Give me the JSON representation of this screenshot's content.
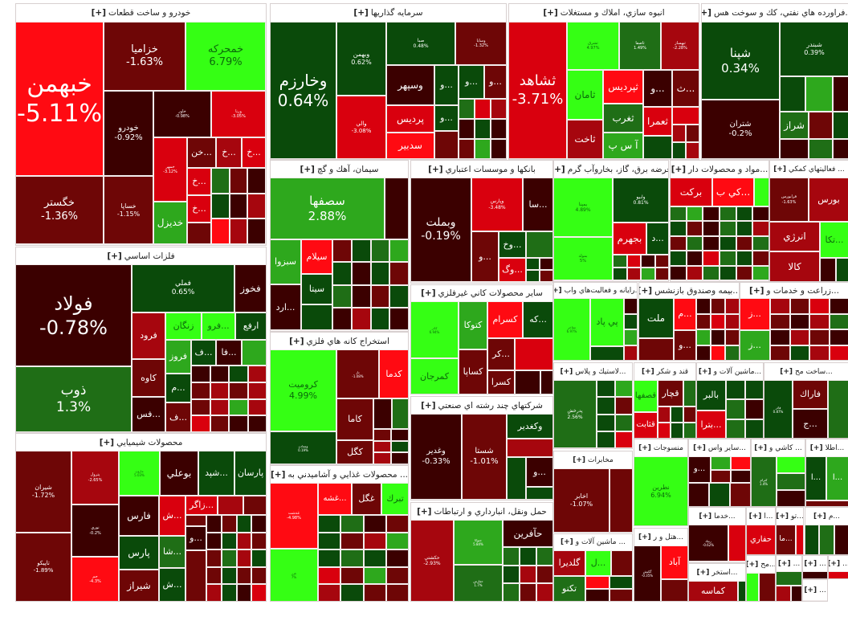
{
  "expand_label": "[+]",
  "sectors": [
    {
      "title": "خودرو و ساخت قطعات",
      "tiles": [
        {
          "label": "خبهمن",
          "pct": "-5.11%"
        },
        {
          "label": "خگستر",
          "pct": "-1.36%"
        },
        {
          "label": "خزاميا",
          "pct": "-1.63%"
        },
        {
          "label": "خمحركه",
          "pct": "6.79%"
        },
        {
          "label": "خودرو",
          "pct": "-0.92%"
        },
        {
          "label": "خاور",
          "pct": "-0.98%"
        },
        {
          "label": "ورنا",
          "pct": "-3.05%"
        },
        {
          "label": "خساپا",
          "pct": "-1.15%"
        },
        {
          "label": "خمهر",
          "pct": "-3.12%"
        },
        {
          "label": "خديزل"
        },
        {
          "label": "...خن"
        },
        {
          "label": "...خ"
        },
        {
          "label": "...خ"
        },
        {
          "label": "...خ"
        },
        {
          "label": "...خ"
        }
      ]
    },
    {
      "title": "سرمايه گذاريها",
      "tiles": [
        {
          "label": "وخارزم",
          "pct": "0.64%"
        },
        {
          "label": "وبهمن",
          "pct": "0.62%"
        },
        {
          "label": "والي",
          "pct": "-3.08%"
        },
        {
          "label": "صبا",
          "pct": "0.48%"
        },
        {
          "label": "وسايا",
          "pct": "-1.32%"
        },
        {
          "label": "وسپهر"
        },
        {
          "label": "پرديس"
        },
        {
          "label": "سدبير"
        },
        {
          "label": "...و"
        },
        {
          "label": "...و"
        },
        {
          "label": "...و"
        },
        {
          "label": "...و"
        }
      ]
    },
    {
      "title": "انبوه سازي، املاك و مستغلات",
      "tiles": [
        {
          "label": "ثشاهد",
          "pct": "-3.71%"
        },
        {
          "label": "ثشرق",
          "pct": "4.97%"
        },
        {
          "label": "ثاصفا",
          "pct": "1.49%"
        },
        {
          "label": "ثبهساز",
          "pct": "-2.28%"
        },
        {
          "label": "ثامان"
        },
        {
          "label": "ثپرديس"
        },
        {
          "label": "...و"
        },
        {
          "label": "...ث"
        },
        {
          "label": "ثغرب"
        },
        {
          "label": "ثعمرا"
        },
        {
          "label": "ثاخت"
        },
        {
          "label": "آ س پ"
        }
      ]
    },
    {
      "title": "...فراورده هاي نفتي، كك و سوخت هس",
      "tiles": [
        {
          "label": "شپنا",
          "pct": "0.34%"
        },
        {
          "label": "شبندر",
          "pct": "0.39%"
        },
        {
          "label": "شتران",
          "pct": "-0.2%"
        },
        {
          "label": "شراز"
        }
      ]
    },
    {
      "title": "سيمان، آهك و گچ",
      "tiles": [
        {
          "label": "سصفها",
          "pct": "2.88%"
        },
        {
          "label": "سبزوا"
        },
        {
          "label": "سيلام"
        },
        {
          "label": "سيتا"
        },
        {
          "label": "...ارد"
        }
      ]
    },
    {
      "title": "بانكها و موسسات اعتباري",
      "tiles": [
        {
          "label": "وبملت",
          "pct": "-0.19%"
        },
        {
          "label": "وپارس",
          "pct": "-3.48%"
        },
        {
          "label": "...سا"
        },
        {
          "label": "...و"
        },
        {
          "label": "...وخ"
        },
        {
          "label": "...وگ"
        }
      ]
    },
    {
      "title": "عرضه برق، گاز، بخاروآب گرم",
      "tiles": [
        {
          "label": "بمپنا",
          "pct": "4.89%"
        },
        {
          "label": "بمولد",
          "pct": "5%"
        },
        {
          "label": "وابيو",
          "pct": "0.81%"
        },
        {
          "label": "بجهرم"
        },
        {
          "label": "...د"
        }
      ]
    },
    {
      "title": "...مواد و محصولات دار",
      "tiles": [
        {
          "label": "بركت"
        },
        {
          "label": "...كي ب"
        }
      ]
    },
    {
      "title": "... فعاليتهاي كمكي",
      "tiles": [
        {
          "label": "فرابورس",
          "pct": "-1.63%"
        },
        {
          "label": "بورس"
        },
        {
          "label": "انرژي"
        },
        {
          "label": "...تكا"
        },
        {
          "label": "كالا"
        }
      ]
    },
    {
      "title": "فلزات اساسي",
      "tiles": [
        {
          "label": "فولاد",
          "pct": "-0.78%"
        },
        {
          "label": "ذوب",
          "pct": "1.3%"
        },
        {
          "label": "فملي",
          "pct": "0.65%"
        },
        {
          "label": "فخوز"
        },
        {
          "label": "فرود"
        },
        {
          "label": "زنگان"
        },
        {
          "label": "...فرو"
        },
        {
          "label": "ارفع"
        },
        {
          "label": "كاوه"
        },
        {
          "label": "...فس"
        },
        {
          "label": "فروز"
        },
        {
          "label": "...ف"
        },
        {
          "label": "...فا"
        },
        {
          "label": "...م"
        },
        {
          "label": "...ف"
        }
      ]
    },
    {
      "title": "محصولات شيميايي",
      "tiles": [
        {
          "label": "شيران",
          "pct": "-1.72%"
        },
        {
          "label": "تاپيكو",
          "pct": "-1.89%"
        },
        {
          "label": "پترول",
          "pct": "-2.65%"
        },
        {
          "label": "نوري",
          "pct": "-0.2%"
        },
        {
          "label": "جم",
          "pct": "-4.3%"
        },
        {
          "label": "مارون",
          "pct": "5.03%"
        },
        {
          "label": "بوعلي"
        },
        {
          "label": "...شپد"
        },
        {
          "label": "پارسان"
        },
        {
          "label": "فارس"
        },
        {
          "label": "پارس"
        },
        {
          "label": "شيراز"
        },
        {
          "label": "...ش"
        },
        {
          "label": "...زاگر"
        },
        {
          "label": "...شا"
        },
        {
          "label": "...ش"
        },
        {
          "label": "...و"
        }
      ]
    },
    {
      "title": "استخراج كانه هاي فلزي",
      "tiles": [
        {
          "label": "كروميت",
          "pct": "4.99%"
        },
        {
          "label": "ومعادن",
          "pct": "0.19%"
        },
        {
          "label": "تاز",
          "pct": "-1.08%"
        },
        {
          "label": "كدما"
        },
        {
          "label": "كاما"
        },
        {
          "label": "كگل"
        }
      ]
    },
    {
      "title": "... محصولات غذايي و آشاميدني به",
      "tiles": [
        {
          "label": "غدشت",
          "pct": "-4.98%"
        },
        {
          "label": "غزر",
          "pct": "7%"
        },
        {
          "label": "...غشه"
        },
        {
          "label": "غگل"
        },
        {
          "label": "تبرك"
        }
      ]
    },
    {
      "title": "ساير محصولات كاني غيرفلزي",
      "tiles": [
        {
          "label": "كاذر",
          "pct": "6.94%"
        },
        {
          "label": "كمرجان"
        },
        {
          "label": "كتوكا"
        },
        {
          "label": "كسرام"
        },
        {
          "label": "...كه"
        },
        {
          "label": "كساپا"
        },
        {
          "label": "...كر"
        },
        {
          "label": "كسرا"
        }
      ]
    },
    {
      "title": "شركتهاي چند رشته اي صنعتي",
      "tiles": [
        {
          "label": "وغدير",
          "pct": "-0.33%"
        },
        {
          "label": "شستا",
          "pct": "-1.01%"
        },
        {
          "label": "وكغدير"
        },
        {
          "label": "...و"
        }
      ]
    },
    {
      "title": "حمل ونقل، انبارداري و ارتباطات",
      "tiles": [
        {
          "label": "حكشتي",
          "pct": "-2.93%"
        },
        {
          "label": "حتوكا",
          "pct": "5.84%"
        },
        {
          "label": "حفارس",
          "pct": "1.7%"
        },
        {
          "label": "حآفرين"
        }
      ]
    },
    {
      "title": "...رايانه و فعاليت‌هاي واب",
      "tiles": [
        {
          "label": "مفاخر",
          "pct": "6.97%"
        },
        {
          "label": "پي پاد"
        }
      ]
    },
    {
      "title": "...بيمه وصندوق بازنشس",
      "tiles": [
        {
          "label": "ملت"
        },
        {
          "label": "...م"
        },
        {
          "label": "...و"
        }
      ]
    },
    {
      "title": "...زراعت و خدمات و",
      "tiles": [
        {
          "label": "...ز"
        },
        {
          "label": "...ز"
        }
      ]
    },
    {
      "title": "...لاستيك و پلاس",
      "tiles": [
        {
          "label": "پدرخش",
          "pct": "2.56%"
        }
      ]
    },
    {
      "title": "قند و شكر",
      "tiles": [
        {
          "label": "قصفها"
        },
        {
          "label": "قچار"
        },
        {
          "label": "قثابت"
        }
      ]
    },
    {
      "title": "...ماشين آلات و",
      "tiles": [
        {
          "label": "بالبر"
        },
        {
          "label": "...بترا"
        }
      ]
    },
    {
      "title": "...ساخت مح",
      "tiles": [
        {
          "label": "فاذر",
          "pct": "0.87%"
        },
        {
          "label": "فاراك"
        },
        {
          "label": "...ج"
        }
      ]
    },
    {
      "title": "مخابرات",
      "tiles": [
        {
          "label": "اخابر",
          "pct": "-1.07%"
        }
      ]
    },
    {
      "title": "... ماشين آلات و",
      "tiles": [
        {
          "label": "گلديرا"
        },
        {
          "label": "...ل"
        },
        {
          "label": "تكنو"
        }
      ]
    },
    {
      "title": "منسوجات",
      "tiles": [
        {
          "label": "نطرين",
          "pct": "6.94%"
        }
      ]
    },
    {
      "title": "...ساير واس",
      "tiles": [
        {
          "label": "...و"
        }
      ]
    },
    {
      "title": "... كاشي و",
      "tiles": [
        {
          "label": "كترام",
          "pct": "1.4%"
        }
      ]
    },
    {
      "title": "...اطلا",
      "tiles": [
        {
          "label": "...ا"
        },
        {
          "label": "...ا"
        }
      ]
    },
    {
      "title": "...هتل و ر",
      "tiles": [
        {
          "label": "گكيش",
          "pct": "-0.35%"
        },
        {
          "label": "آباد"
        }
      ]
    },
    {
      "title": "...خدما",
      "tiles": [
        {
          "label": "رنيك",
          "pct": "-0.62%"
        }
      ]
    },
    {
      "title": "...ا",
      "tiles": [
        {
          "label": "حفاري"
        }
      ]
    },
    {
      "title": "...تو",
      "tiles": [
        {
          "label": "...ما"
        }
      ]
    },
    {
      "title": "...م",
      "tiles": []
    },
    {
      "title": "...استخر",
      "tiles": [
        {
          "label": "كماسه"
        }
      ]
    },
    {
      "title": "...مح",
      "tiles": []
    },
    {
      "title": "...",
      "tiles": []
    },
    {
      "title": "...",
      "tiles": []
    },
    {
      "title": "...",
      "tiles": []
    },
    {
      "title": "...",
      "tiles": []
    }
  ]
}
